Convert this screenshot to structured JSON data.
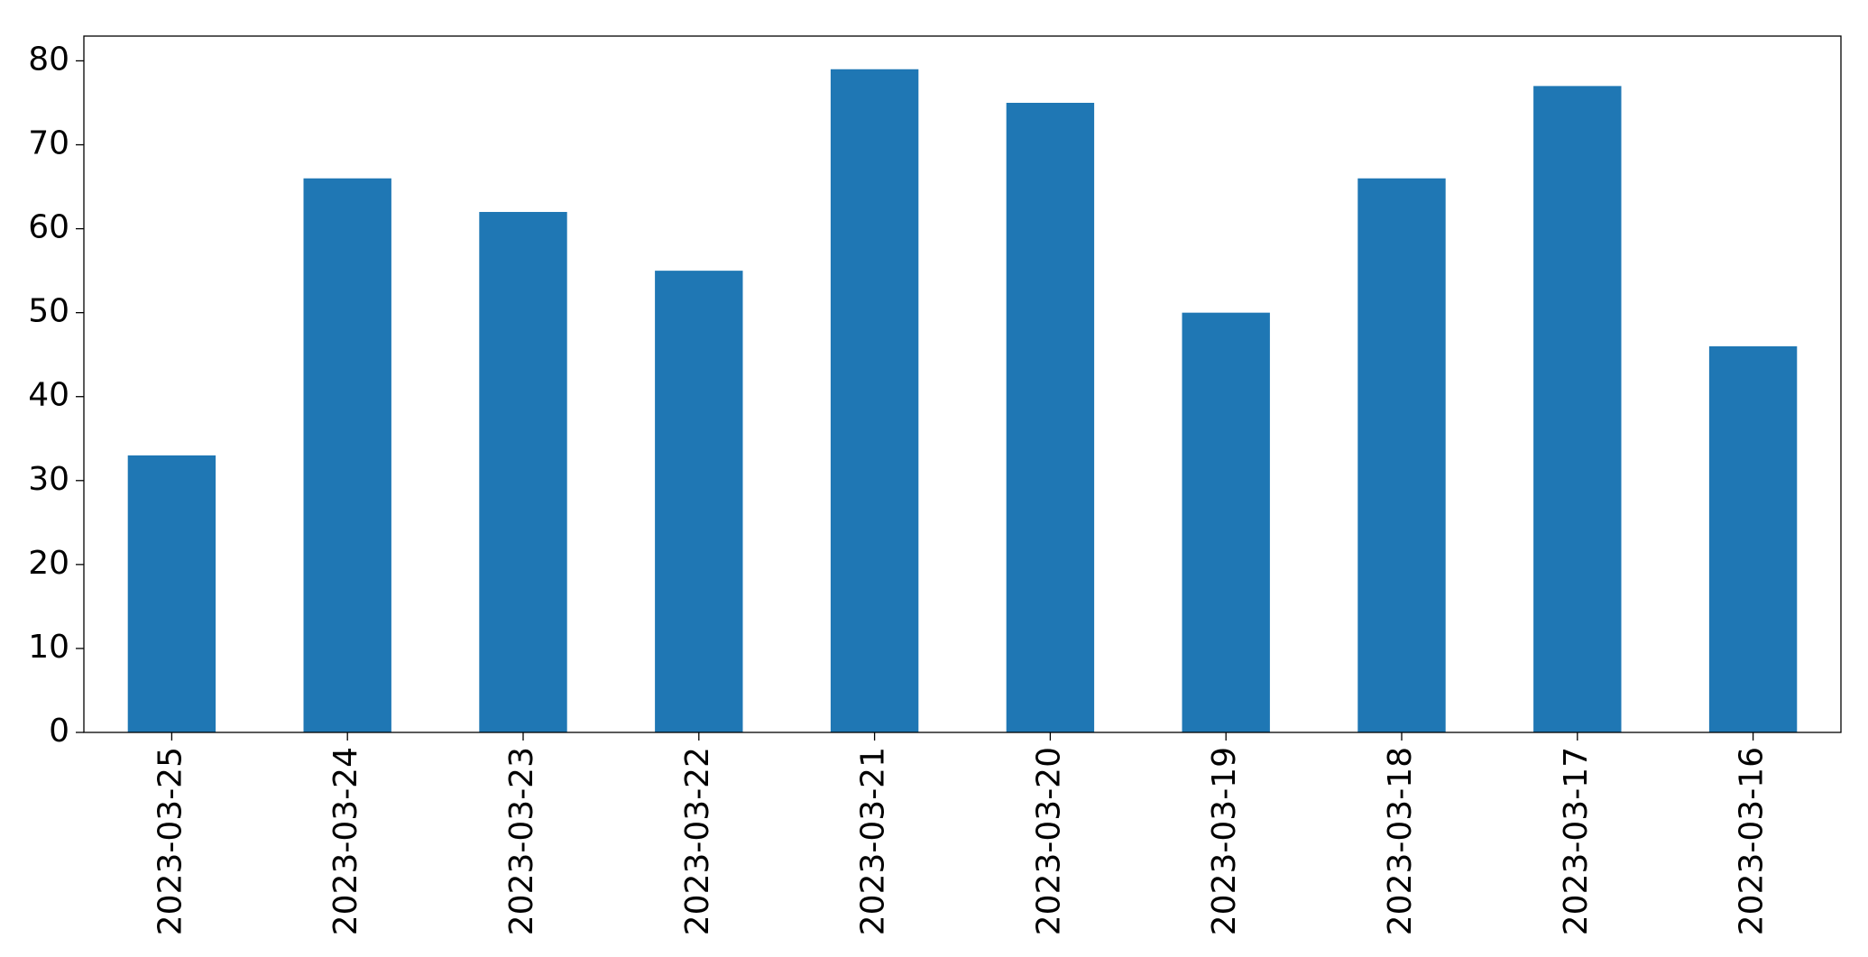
{
  "chart_data": {
    "type": "bar",
    "categories": [
      "2023-03-25",
      "2023-03-24",
      "2023-03-23",
      "2023-03-22",
      "2023-03-21",
      "2023-03-20",
      "2023-03-19",
      "2023-03-18",
      "2023-03-17",
      "2023-03-16"
    ],
    "values": [
      33,
      66,
      62,
      55,
      79,
      75,
      50,
      66,
      77,
      46
    ],
    "color": "#1f77b4",
    "ylim": [
      0,
      82.95
    ],
    "yticks": [
      0,
      10,
      20,
      30,
      40,
      50,
      60,
      70,
      80
    ],
    "grid": false
  }
}
